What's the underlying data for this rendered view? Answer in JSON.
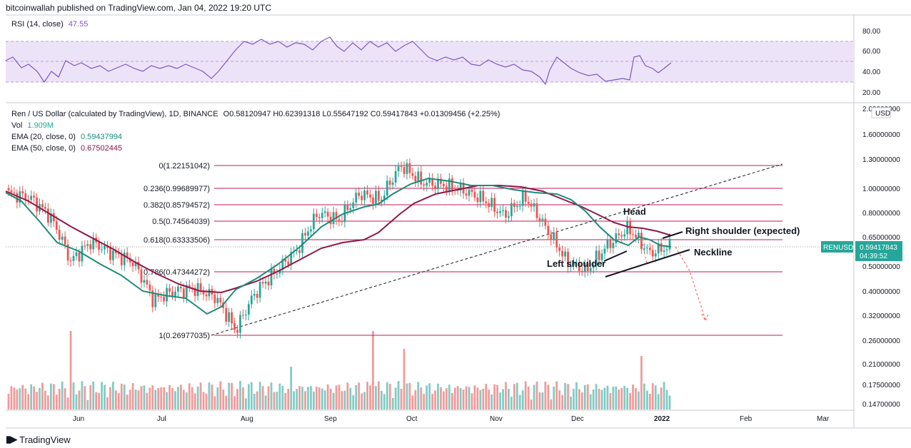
{
  "publisher": "bitcoinwallah published on TradingView.com, Jan 04, 2022 19:20 UTC",
  "footer": {
    "brand": "TradingView",
    "logo_icon": "tradingview-logo-icon"
  },
  "rsi_panel": {
    "label": "RSI (14, close)",
    "value": "47.55",
    "ticks": [
      "80.00",
      "60.00",
      "40.00",
      "20.00"
    ],
    "colors": {
      "line": "#7e57c2",
      "band": "#ede3f8"
    }
  },
  "main_panel": {
    "legend": {
      "title": "Ren / US Dollar (calculated by TradingView), 1D, BINANCE",
      "ohlc": "O0.58120947 H0.62391318 L0.55647192 C0.59417843 +0.01309456 (+2.25%)",
      "vol_label": "Vol",
      "vol_value": "1.909M",
      "ema20_label": "EMA (20, close, 0)",
      "ema20_value": "0.59437994",
      "ema50_label": "EMA (50, close, 0)",
      "ema50_value": "0.67502445"
    },
    "currency": "USD",
    "price_ticks": [
      "2.00000000",
      "1.60000000",
      "1.30000000",
      "1.00000000",
      "0.80000000",
      "0.65000000",
      "0.50000000",
      "0.40000000",
      "0.32000000",
      "0.26000000",
      "0.21000000",
      "0.17500000",
      "0.14700000"
    ],
    "symbol_tag": {
      "symbol": "RENUSD",
      "price": "0.59417843",
      "countdown": "04:39:52"
    },
    "x_ticks": [
      "Jun",
      "Jul",
      "Aug",
      "Sep",
      "Oct",
      "Nov",
      "Dec",
      "2022",
      "Feb",
      "Mar"
    ],
    "fib_levels": [
      "0(1.22151042)",
      "0.236(0.99689977)",
      "0.382(0.85794572)",
      "0.5(0.74564039)",
      "0.618(0.63333506)",
      "0.786(0.47344272)",
      "1(0.26977035)"
    ],
    "annotations": [
      "Head",
      "Right shoulder (expected)",
      "Neckline",
      "Left shoulder"
    ],
    "colors": {
      "up": "#26a69a",
      "down": "#ef5350",
      "ema20": "#1e8a78",
      "ema50": "#8b1a4a",
      "fib": "#c2185b",
      "volume_up": "#80cbc4",
      "volume_down": "#ef9a9a",
      "tag_bg": "#26a69a"
    }
  },
  "chart_data": {
    "type": "candlestick",
    "symbol": "RENUSD",
    "timeframe": "1D",
    "y_scale": "log",
    "ylim": [
      0.147,
      2.0
    ],
    "x": [
      "Jun",
      "Jul",
      "Aug",
      "Sep",
      "Oct",
      "Nov",
      "Dec",
      "2022",
      "Feb",
      "Mar"
    ],
    "close_series": [
      {
        "t": "May 10",
        "c": 0.95
      },
      {
        "t": "May 15",
        "c": 0.92
      },
      {
        "t": "May 20",
        "c": 0.78
      },
      {
        "t": "May 24",
        "c": 0.52
      },
      {
        "t": "Jun 01",
        "c": 0.62
      },
      {
        "t": "Jun 08",
        "c": 0.56
      },
      {
        "t": "Jun 15",
        "c": 0.52
      },
      {
        "t": "Jun 22",
        "c": 0.37
      },
      {
        "t": "Jul 01",
        "c": 0.4
      },
      {
        "t": "Jul 08",
        "c": 0.41
      },
      {
        "t": "Jul 15",
        "c": 0.38
      },
      {
        "t": "Jul 21",
        "c": 0.28
      },
      {
        "t": "Aug 01",
        "c": 0.4
      },
      {
        "t": "Aug 10",
        "c": 0.48
      },
      {
        "t": "Aug 20",
        "c": 0.58
      },
      {
        "t": "Sep 01",
        "c": 0.8
      },
      {
        "t": "Sep 10",
        "c": 0.75
      },
      {
        "t": "Sep 15",
        "c": 0.95
      },
      {
        "t": "Sep 25",
        "c": 0.9
      },
      {
        "t": "Oct 01",
        "c": 1.22
      },
      {
        "t": "Oct 10",
        "c": 1.05
      },
      {
        "t": "Oct 20",
        "c": 1.03
      },
      {
        "t": "Nov 01",
        "c": 0.98
      },
      {
        "t": "Nov 10",
        "c": 0.9
      },
      {
        "t": "Nov 20",
        "c": 0.78
      },
      {
        "t": "Nov 25",
        "c": 0.92
      },
      {
        "t": "Dec 04",
        "c": 0.7
      },
      {
        "t": "Dec 10",
        "c": 0.52
      },
      {
        "t": "Dec 15",
        "c": 0.48
      },
      {
        "t": "Dec 20",
        "c": 0.6
      },
      {
        "t": "Dec 23",
        "c": 0.7
      },
      {
        "t": "Dec 28",
        "c": 0.56
      },
      {
        "t": "Jan 04",
        "c": 0.594
      }
    ],
    "ema20": {
      "name": "EMA (20, close, 0)",
      "last": 0.59437994
    },
    "ema50": {
      "name": "EMA (50, close, 0)",
      "last": 0.67502445
    },
    "rsi": {
      "name": "RSI (14, close)",
      "last": 47.55,
      "ylim": [
        20,
        80
      ],
      "band": [
        30,
        70
      ]
    },
    "fibonacci": [
      {
        "level": "0",
        "price": 1.22151042
      },
      {
        "level": "0.236",
        "price": 0.99689977
      },
      {
        "level": "0.382",
        "price": 0.85794572
      },
      {
        "level": "0.5",
        "price": 0.74564039
      },
      {
        "level": "0.618",
        "price": 0.63333506
      },
      {
        "level": "0.786",
        "price": 0.47344272
      },
      {
        "level": "1",
        "price": 0.26977035
      }
    ],
    "last_price": 0.59417843,
    "annotations": [
      "Head",
      "Right shoulder (expected)",
      "Neckline",
      "Left shoulder"
    ]
  }
}
